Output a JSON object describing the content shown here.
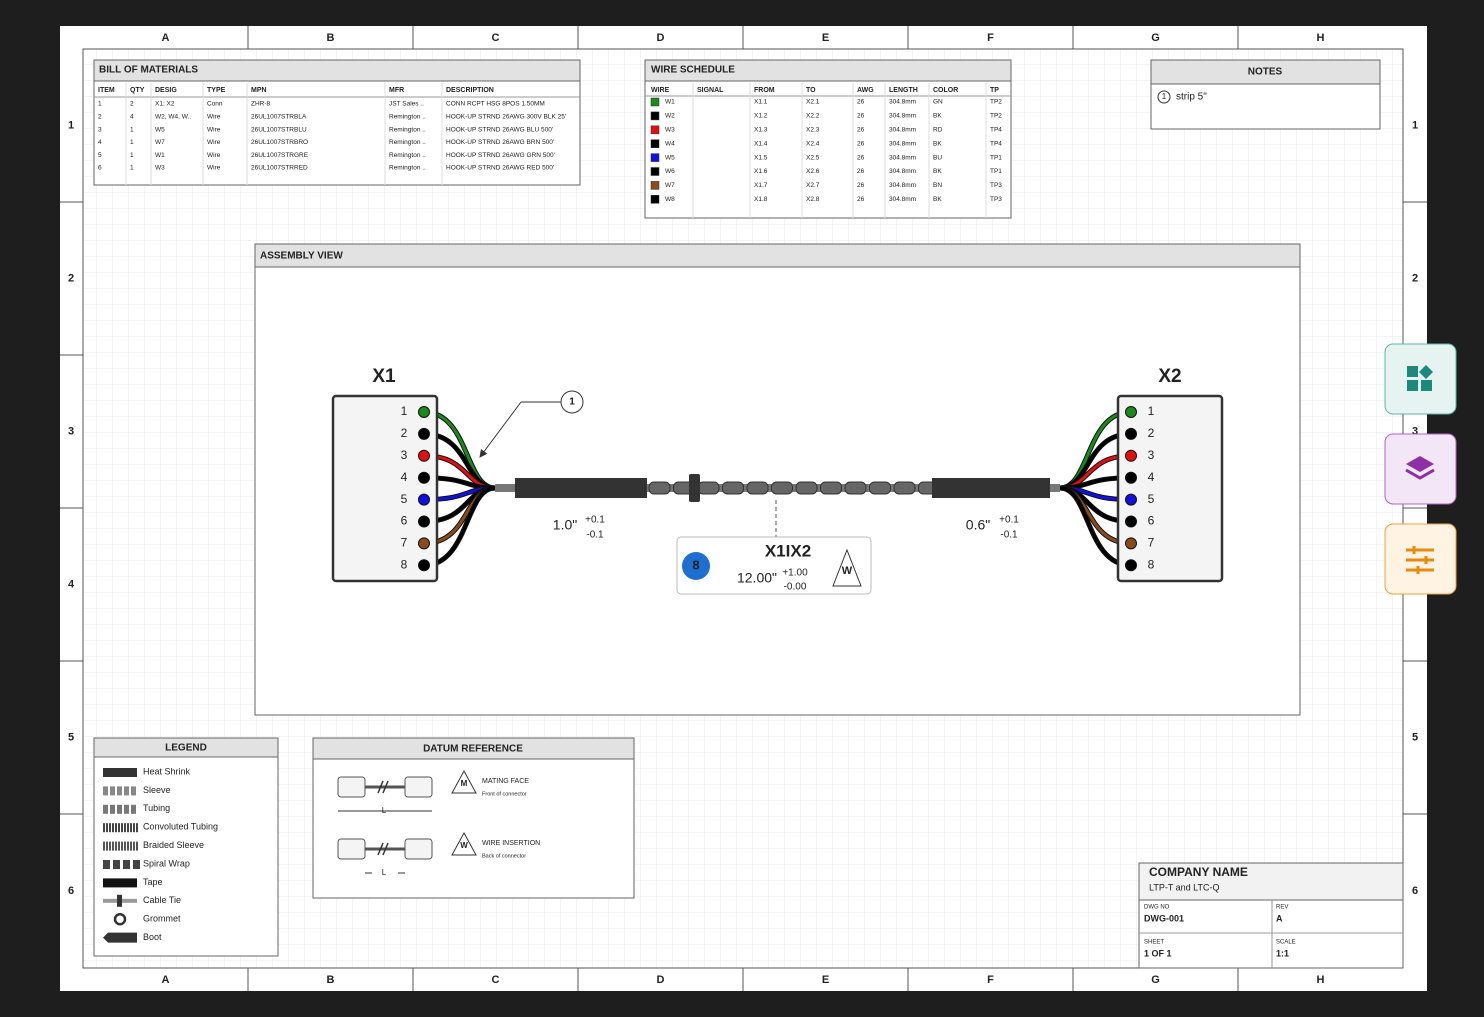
{
  "sheet": {
    "columns": [
      "A",
      "B",
      "C",
      "D",
      "E",
      "F",
      "G",
      "H"
    ],
    "rows": [
      "1",
      "2",
      "3",
      "4",
      "5",
      "6"
    ]
  },
  "bom": {
    "title": "BILL OF MATERIALS",
    "headers": [
      "ITEM",
      "QTY",
      "DESIG",
      "TYPE",
      "MPN",
      "MFR",
      "DESCRIPTION"
    ],
    "rows": [
      [
        "1",
        "2",
        "X1; X2",
        "Conn",
        "ZHR-8",
        "JST Sales ..",
        "CONN RCPT HSG 8POS 1.50MM"
      ],
      [
        "2",
        "4",
        "W2, W4, W..",
        "Wire",
        "26UL1007STRBLA",
        "Remington ..",
        "HOOK-UP STRND 26AWG 300V BLK 25'"
      ],
      [
        "3",
        "1",
        "W5",
        "Wire",
        "26UL1007STRBLU",
        "Remington ..",
        "HOOK-UP STRND 26AWG BLU 500'"
      ],
      [
        "4",
        "1",
        "W7",
        "Wire",
        "26UL1007STRBRO",
        "Remington ..",
        "HOOK-UP STRND 26AWG BRN 500'"
      ],
      [
        "5",
        "1",
        "W1",
        "Wire",
        "26UL1007STRGRE",
        "Remington ..",
        "HOOK-UP STRND 26AWG GRN 500'"
      ],
      [
        "6",
        "1",
        "W3",
        "Wire",
        "26UL1007STRRED",
        "Remington ..",
        "HOOK-UP STRND 26AWG RED 500'"
      ]
    ]
  },
  "wire_schedule": {
    "title": "WIRE SCHEDULE",
    "headers": [
      "WIRE",
      "SIGNAL",
      "FROM",
      "TO",
      "AWG",
      "LENGTH",
      "COLOR",
      "TP"
    ],
    "rows": [
      {
        "wire": "W1",
        "from": "X1.1",
        "to": "X2.1",
        "awg": "26",
        "length": "304.8mm",
        "color": "GN",
        "tp": "TP2"
      },
      {
        "wire": "W2",
        "from": "X1.2",
        "to": "X2.2",
        "awg": "26",
        "length": "304.8mm",
        "color": "BK",
        "tp": "TP2"
      },
      {
        "wire": "W3",
        "from": "X1.3",
        "to": "X2.3",
        "awg": "26",
        "length": "304.8mm",
        "color": "RD",
        "tp": "TP4"
      },
      {
        "wire": "W4",
        "from": "X1.4",
        "to": "X2.4",
        "awg": "26",
        "length": "304.8mm",
        "color": "BK",
        "tp": "TP4"
      },
      {
        "wire": "W5",
        "from": "X1.5",
        "to": "X2.5",
        "awg": "26",
        "length": "304.8mm",
        "color": "BU",
        "tp": "TP1"
      },
      {
        "wire": "W6",
        "from": "X1.6",
        "to": "X2.6",
        "awg": "26",
        "length": "304.8mm",
        "color": "BK",
        "tp": "TP1"
      },
      {
        "wire": "W7",
        "from": "X1.7",
        "to": "X2.7",
        "awg": "26",
        "length": "304.8mm",
        "color": "BN",
        "tp": "TP3"
      },
      {
        "wire": "W8",
        "from": "X1.8",
        "to": "X2.8",
        "awg": "26",
        "length": "304.8mm",
        "color": "BK",
        "tp": "TP3"
      }
    ]
  },
  "notes": {
    "title": "NOTES",
    "items": [
      {
        "number": "1",
        "text": "strip 5\""
      }
    ]
  },
  "assembly": {
    "title": "ASSEMBLY VIEW",
    "connectors": [
      {
        "name": "X1",
        "pins": [
          "1",
          "2",
          "3",
          "4",
          "5",
          "6",
          "7",
          "8"
        ]
      },
      {
        "name": "X2",
        "pins": [
          "1",
          "2",
          "3",
          "4",
          "5",
          "6",
          "7",
          "8"
        ]
      }
    ],
    "callout": "1",
    "left_length": {
      "value": "1.0\"",
      "plus": "+0.1",
      "minus": "-0.1"
    },
    "right_length": {
      "value": "0.6\"",
      "plus": "+0.1",
      "minus": "-0.1"
    },
    "cable": {
      "count": "8",
      "name": "X1IX2",
      "length": "12.00\"",
      "plus": "+1.00",
      "minus": "-0.00",
      "datum": "W"
    }
  },
  "legend": {
    "title": "LEGEND",
    "items": [
      "Heat Shrink",
      "Sleeve",
      "Tubing",
      "Convoluted Tubing",
      "Braided Sleeve",
      "Spiral Wrap",
      "Tape",
      "Cable Tie",
      "Grommet",
      "Boot"
    ]
  },
  "datum": {
    "title": "DATUM REFERENCE",
    "items": [
      {
        "symbol": "M",
        "label": "MATING FACE",
        "detail": "Front of connector",
        "dim": "L"
      },
      {
        "symbol": "W",
        "label": "WIRE INSERTION",
        "detail": "Back of connector",
        "dim": "L"
      }
    ]
  },
  "title_block": {
    "company": "COMPANY NAME",
    "subtitle": "LTP-T and LTC-Q",
    "fields": [
      {
        "label": "DWG NO",
        "value": "DWG-001"
      },
      {
        "label": "REV",
        "value": "A"
      },
      {
        "label": "SHEET",
        "value": "1 OF 1"
      },
      {
        "label": "SCALE",
        "value": "1:1"
      }
    ]
  }
}
